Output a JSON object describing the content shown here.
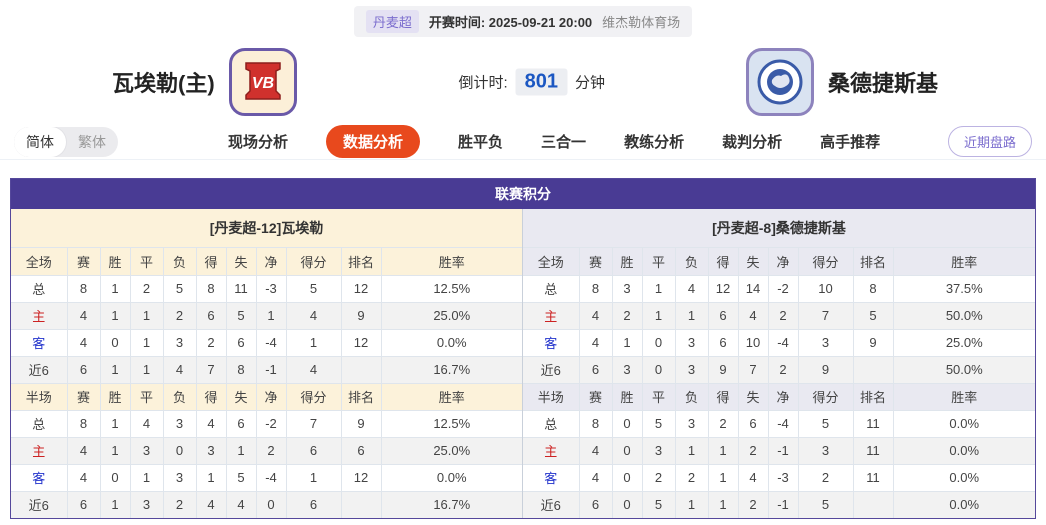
{
  "header": {
    "league": "丹麦超",
    "kickoff_label": "开赛时间:",
    "kickoff_time": "2025-09-21 20:00",
    "venue": "维杰勒体育场",
    "home_team": "瓦埃勒(主)",
    "away_team": "桑德捷斯基",
    "countdown_label": "倒计时:",
    "countdown_value": "801",
    "countdown_unit": "分钟",
    "home_logo_text": "VB"
  },
  "nav": {
    "lang_simplified": "简体",
    "lang_traditional": "繁体",
    "tabs": [
      {
        "label": "现场分析",
        "active": false
      },
      {
        "label": "数据分析",
        "active": true
      },
      {
        "label": "胜平负",
        "active": false
      },
      {
        "label": "三合一",
        "active": false
      },
      {
        "label": "教练分析",
        "active": false
      },
      {
        "label": "裁判分析",
        "active": false
      },
      {
        "label": "高手推荐",
        "active": false
      }
    ],
    "recent_trend_button": "近期盘路"
  },
  "league_table": {
    "title": "联赛积分",
    "sides": [
      {
        "team_title": "[丹麦超-12]瓦埃勒",
        "sections": [
          {
            "columns": [
              "全场",
              "赛",
              "胜",
              "平",
              "负",
              "得",
              "失",
              "净",
              "得分",
              "排名",
              "胜率"
            ],
            "rows": [
              {
                "label": "总",
                "type": "total",
                "cells": [
                  "8",
                  "1",
                  "2",
                  "5",
                  "8",
                  "11",
                  "-3",
                  "5",
                  "12",
                  "12.5%"
                ]
              },
              {
                "label": "主",
                "type": "home",
                "cells": [
                  "4",
                  "1",
                  "1",
                  "2",
                  "6",
                  "5",
                  "1",
                  "4",
                  "9",
                  "25.0%"
                ]
              },
              {
                "label": "客",
                "type": "away",
                "cells": [
                  "4",
                  "0",
                  "1",
                  "3",
                  "2",
                  "6",
                  "-4",
                  "1",
                  "12",
                  "0.0%"
                ]
              },
              {
                "label": "近6",
                "type": "recent",
                "cells": [
                  "6",
                  "1",
                  "1",
                  "4",
                  "7",
                  "8",
                  "-1",
                  "4",
                  "",
                  "16.7%"
                ]
              }
            ]
          },
          {
            "columns": [
              "半场",
              "赛",
              "胜",
              "平",
              "负",
              "得",
              "失",
              "净",
              "得分",
              "排名",
              "胜率"
            ],
            "rows": [
              {
                "label": "总",
                "type": "total",
                "cells": [
                  "8",
                  "1",
                  "4",
                  "3",
                  "4",
                  "6",
                  "-2",
                  "7",
                  "9",
                  "12.5%"
                ]
              },
              {
                "label": "主",
                "type": "home",
                "cells": [
                  "4",
                  "1",
                  "3",
                  "0",
                  "3",
                  "1",
                  "2",
                  "6",
                  "6",
                  "25.0%"
                ]
              },
              {
                "label": "客",
                "type": "away",
                "cells": [
                  "4",
                  "0",
                  "1",
                  "3",
                  "1",
                  "5",
                  "-4",
                  "1",
                  "12",
                  "0.0%"
                ]
              },
              {
                "label": "近6",
                "type": "recent",
                "cells": [
                  "6",
                  "1",
                  "3",
                  "2",
                  "4",
                  "4",
                  "0",
                  "6",
                  "",
                  "16.7%"
                ]
              }
            ]
          }
        ]
      },
      {
        "team_title": "[丹麦超-8]桑德捷斯基",
        "sections": [
          {
            "columns": [
              "全场",
              "赛",
              "胜",
              "平",
              "负",
              "得",
              "失",
              "净",
              "得分",
              "排名",
              "胜率"
            ],
            "rows": [
              {
                "label": "总",
                "type": "total",
                "cells": [
                  "8",
                  "3",
                  "1",
                  "4",
                  "12",
                  "14",
                  "-2",
                  "10",
                  "8",
                  "37.5%"
                ]
              },
              {
                "label": "主",
                "type": "home",
                "cells": [
                  "4",
                  "2",
                  "1",
                  "1",
                  "6",
                  "4",
                  "2",
                  "7",
                  "5",
                  "50.0%"
                ]
              },
              {
                "label": "客",
                "type": "away",
                "cells": [
                  "4",
                  "1",
                  "0",
                  "3",
                  "6",
                  "10",
                  "-4",
                  "3",
                  "9",
                  "25.0%"
                ]
              },
              {
                "label": "近6",
                "type": "recent",
                "cells": [
                  "6",
                  "3",
                  "0",
                  "3",
                  "9",
                  "7",
                  "2",
                  "9",
                  "",
                  "50.0%"
                ]
              }
            ]
          },
          {
            "columns": [
              "半场",
              "赛",
              "胜",
              "平",
              "负",
              "得",
              "失",
              "净",
              "得分",
              "排名",
              "胜率"
            ],
            "rows": [
              {
                "label": "总",
                "type": "total",
                "cells": [
                  "8",
                  "0",
                  "5",
                  "3",
                  "2",
                  "6",
                  "-4",
                  "5",
                  "11",
                  "0.0%"
                ]
              },
              {
                "label": "主",
                "type": "home",
                "cells": [
                  "4",
                  "0",
                  "3",
                  "1",
                  "1",
                  "2",
                  "-1",
                  "3",
                  "11",
                  "0.0%"
                ]
              },
              {
                "label": "客",
                "type": "away",
                "cells": [
                  "4",
                  "0",
                  "2",
                  "2",
                  "1",
                  "4",
                  "-3",
                  "2",
                  "11",
                  "0.0%"
                ]
              },
              {
                "label": "近6",
                "type": "recent",
                "cells": [
                  "6",
                  "0",
                  "5",
                  "1",
                  "1",
                  "2",
                  "-1",
                  "5",
                  "",
                  "0.0%"
                ]
              }
            ]
          }
        ]
      }
    ]
  },
  "colors": {
    "accent_purple": "#493b94",
    "active_tab_orange": "#e8491d",
    "home_row_red": "#cc2222",
    "away_row_blue": "#2233cc",
    "countdown_blue": "#1b57c2",
    "left_header_cream": "#fcf2da",
    "right_header_lavender": "#e9e9f1"
  },
  "icons": {
    "home_logo": "vb-red-shield-crest",
    "away_logo": "blue-circle-crest"
  }
}
